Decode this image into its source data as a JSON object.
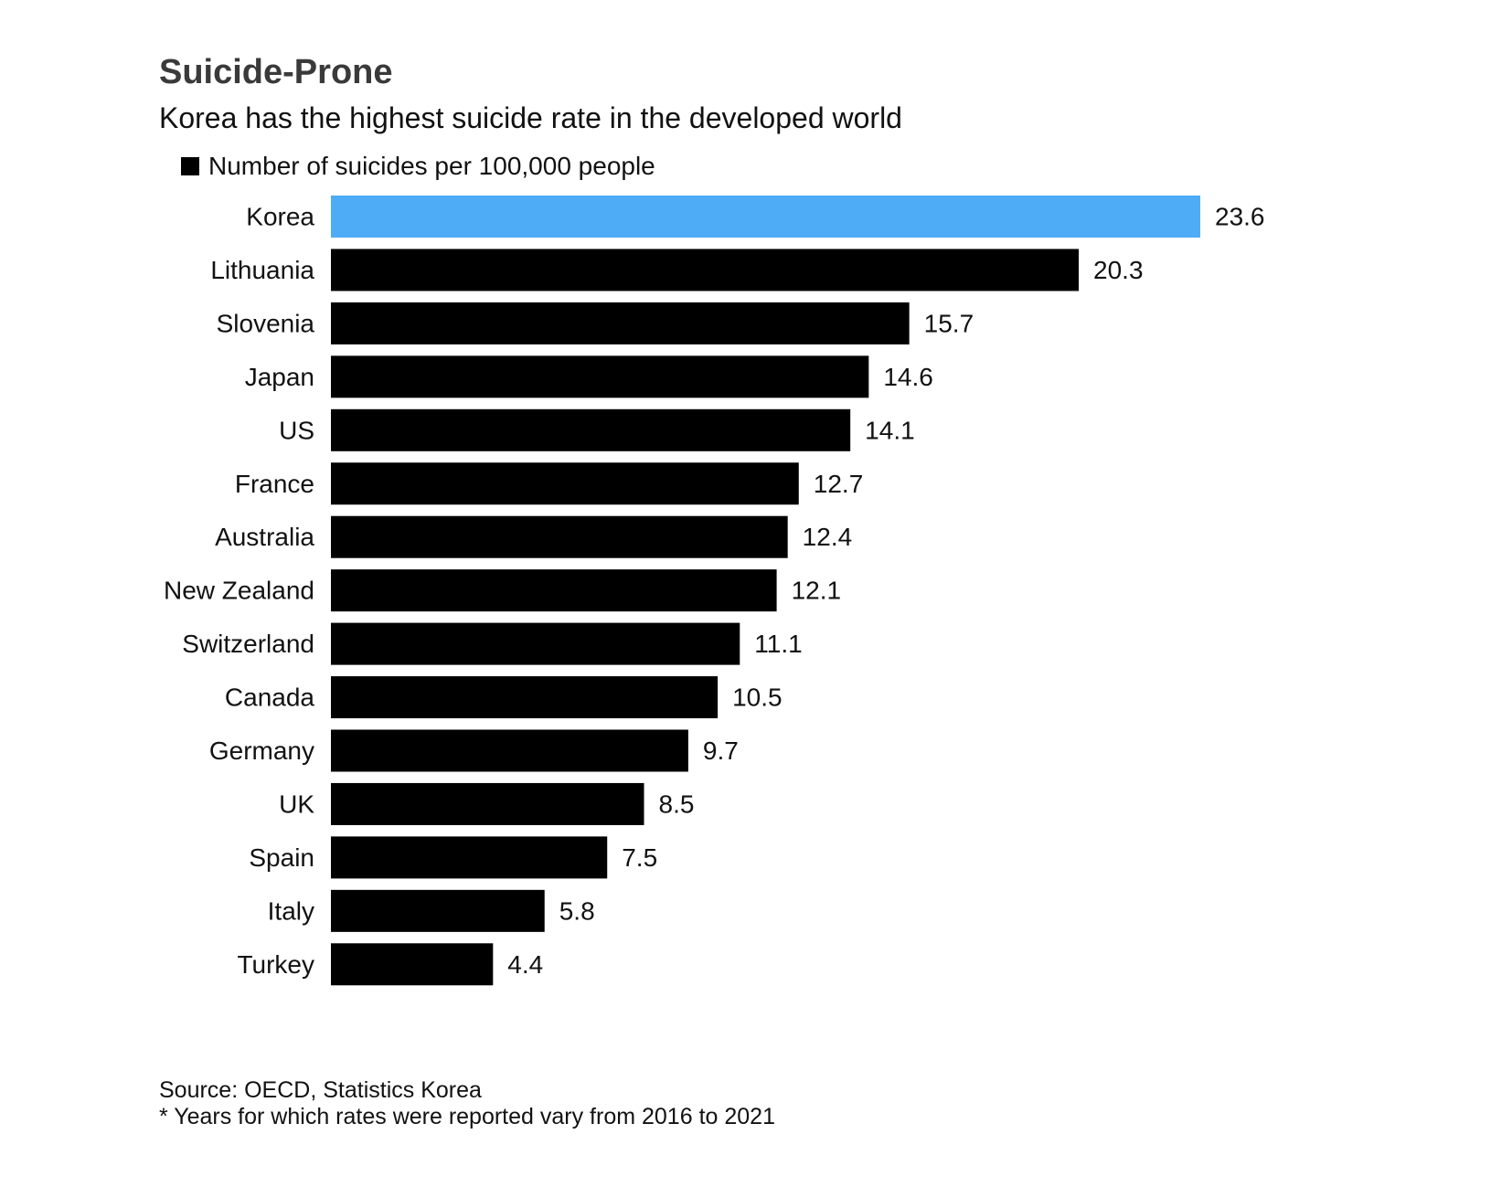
{
  "chart_data": {
    "type": "bar",
    "orientation": "horizontal",
    "title": "Suicide-Prone",
    "subtitle": "Korea has the highest suicide rate in the developed world",
    "legend": [
      {
        "label": "Number of suicides per 100,000 people",
        "color": "#000000"
      }
    ],
    "legend_position": "top-left",
    "categories": [
      "Korea",
      "Lithuania",
      "Slovenia",
      "Japan",
      "US",
      "France",
      "Australia",
      "New Zealand",
      "Switzerland",
      "Canada",
      "Germany",
      "UK",
      "Spain",
      "Italy",
      "Turkey"
    ],
    "value_labels": [
      "23.6",
      "20.3",
      "15.7",
      "14.6",
      "14.1",
      "12.7",
      "12.4",
      "12.1",
      "11.1",
      "10.5",
      "9.7",
      "8.5",
      "7.5",
      "5.8",
      "4.4"
    ],
    "series": [
      {
        "name": "Number of suicides per 100,000 people",
        "values": [
          23.6,
          20.3,
          15.7,
          14.6,
          14.1,
          12.7,
          12.4,
          12.1,
          11.1,
          10.5,
          9.7,
          8.5,
          7.5,
          5.8,
          4.4
        ]
      }
    ],
    "highlight": {
      "category": "Korea",
      "color": "#4dacf5"
    },
    "bar_color": "#000000",
    "xlim": [
      0,
      23.6
    ],
    "grid": false,
    "source": "Source: OECD, Statistics Korea",
    "footnote": "* Years for which rates were reported vary from 2016 to 2021"
  }
}
